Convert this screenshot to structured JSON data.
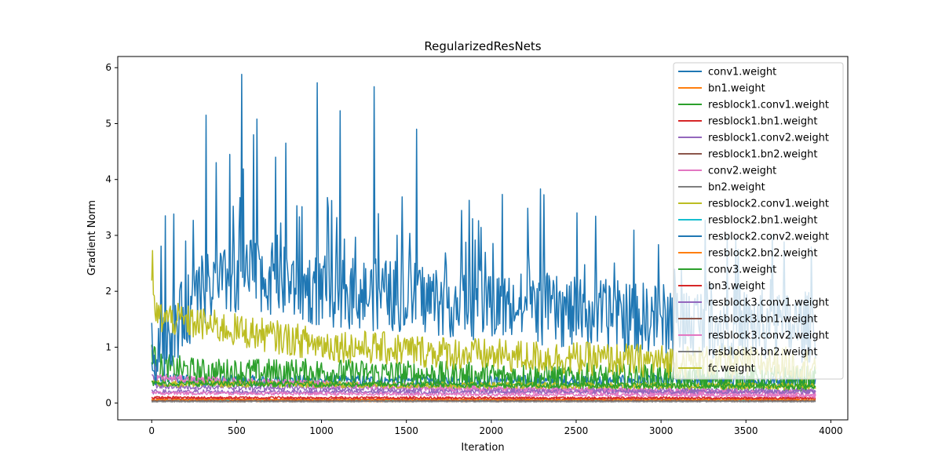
{
  "chart_data": {
    "type": "line",
    "title": "RegularizedResNets",
    "xlabel": "Iteration",
    "ylabel": "Gradient Norm",
    "xlim": [
      -200,
      4100
    ],
    "ylim": [
      -0.3,
      6.2
    ],
    "xticks": [
      0,
      500,
      1000,
      1500,
      2000,
      2500,
      3000,
      3500,
      4000
    ],
    "yticks": [
      0,
      1,
      2,
      3,
      4,
      5,
      6
    ],
    "x_range": [
      0,
      3910
    ],
    "grid": false,
    "legend_position": "upper right",
    "series": [
      {
        "name": "conv1.weight",
        "color": "#1f77b4",
        "profile": [
          [
            0,
            0.7
          ],
          [
            20,
            0.4
          ],
          [
            100,
            0.45
          ],
          [
            300,
            0.4
          ],
          [
            1000,
            0.4
          ],
          [
            2000,
            0.4
          ],
          [
            3910,
            0.4
          ]
        ],
        "amplitude": 0.1,
        "peaks": []
      },
      {
        "name": "bn1.weight",
        "color": "#ff7f0e",
        "profile": [
          [
            0,
            0.04
          ],
          [
            500,
            0.03
          ],
          [
            3910,
            0.04
          ]
        ],
        "amplitude": 0.01,
        "peaks": []
      },
      {
        "name": "resblock1.conv1.weight",
        "color": "#2ca02c",
        "profile": [
          [
            0,
            1.0
          ],
          [
            30,
            0.65
          ],
          [
            300,
            0.55
          ],
          [
            1000,
            0.55
          ],
          [
            2000,
            0.48
          ],
          [
            3000,
            0.45
          ],
          [
            3910,
            0.42
          ]
        ],
        "amplitude": 0.25,
        "peaks": []
      },
      {
        "name": "resblock1.bn1.weight",
        "color": "#d62728",
        "profile": [
          [
            0,
            0.08
          ],
          [
            500,
            0.07
          ],
          [
            3910,
            0.08
          ]
        ],
        "amplitude": 0.02,
        "peaks": []
      },
      {
        "name": "resblock1.conv2.weight",
        "color": "#9467bd",
        "profile": [
          [
            0,
            0.5
          ],
          [
            30,
            0.3
          ],
          [
            500,
            0.28
          ],
          [
            2000,
            0.24
          ],
          [
            3910,
            0.22
          ]
        ],
        "amplitude": 0.05,
        "peaks": []
      },
      {
        "name": "resblock1.bn2.weight",
        "color": "#8c564b",
        "profile": [
          [
            0,
            0.05
          ],
          [
            3910,
            0.05
          ]
        ],
        "amplitude": 0.01,
        "peaks": []
      },
      {
        "name": "conv2.weight",
        "color": "#e377c2",
        "profile": [
          [
            0,
            1.0
          ],
          [
            30,
            0.45
          ],
          [
            500,
            0.38
          ],
          [
            2000,
            0.25
          ],
          [
            3910,
            0.15
          ]
        ],
        "amplitude": 0.07,
        "peaks": []
      },
      {
        "name": "bn2.weight",
        "color": "#7f7f7f",
        "profile": [
          [
            0,
            0.03
          ],
          [
            3910,
            0.03
          ]
        ],
        "amplitude": 0.01,
        "peaks": []
      },
      {
        "name": "resblock2.conv1.weight",
        "color": "#bcbd22",
        "profile": [
          [
            0,
            0.4
          ],
          [
            30,
            0.35
          ],
          [
            1000,
            0.33
          ],
          [
            3910,
            0.3
          ]
        ],
        "amplitude": 0.06,
        "peaks": []
      },
      {
        "name": "resblock2.bn1.weight",
        "color": "#17becf",
        "profile": [
          [
            0,
            0.05
          ],
          [
            3910,
            0.05
          ]
        ],
        "amplitude": 0.01,
        "peaks": []
      },
      {
        "name": "resblock2.conv2.weight",
        "color": "#1f77b4",
        "profile": [
          [
            0,
            0.8
          ],
          [
            40,
            1.0
          ],
          [
            300,
            2.0
          ],
          [
            600,
            2.3
          ],
          [
            1000,
            2.0
          ],
          [
            1500,
            1.9
          ],
          [
            2000,
            1.75
          ],
          [
            2500,
            1.6
          ],
          [
            3000,
            1.5
          ],
          [
            3500,
            1.4
          ],
          [
            3910,
            1.35
          ]
        ],
        "amplitude": 0.65,
        "peaks": [
          [
            80,
            3.35
          ],
          [
            200,
            2.9
          ],
          [
            320,
            5.15
          ],
          [
            380,
            4.3
          ],
          [
            460,
            4.45
          ],
          [
            530,
            5.88
          ],
          [
            600,
            4.8
          ],
          [
            620,
            5.08
          ],
          [
            730,
            4.4
          ],
          [
            790,
            4.65
          ],
          [
            975,
            5.73
          ],
          [
            1110,
            5.23
          ],
          [
            1310,
            5.66
          ],
          [
            1560,
            4.9
          ],
          [
            2290,
            3.83
          ]
        ]
      },
      {
        "name": "resblock2.bn2.weight",
        "color": "#ff7f0e",
        "profile": [
          [
            0,
            0.06
          ],
          [
            3910,
            0.06
          ]
        ],
        "amplitude": 0.01,
        "peaks": []
      },
      {
        "name": "conv3.weight",
        "color": "#2ca02c",
        "profile": [
          [
            0,
            0.35
          ],
          [
            3910,
            0.3
          ]
        ],
        "amplitude": 0.05,
        "peaks": []
      },
      {
        "name": "bn3.weight",
        "color": "#d62728",
        "profile": [
          [
            0,
            0.1
          ],
          [
            3910,
            0.09
          ]
        ],
        "amplitude": 0.02,
        "peaks": []
      },
      {
        "name": "resblock3.conv1.weight",
        "color": "#9467bd",
        "profile": [
          [
            0,
            0.2
          ],
          [
            3910,
            0.2
          ]
        ],
        "amplitude": 0.04,
        "peaks": []
      },
      {
        "name": "resblock3.bn1.weight",
        "color": "#8c564b",
        "profile": [
          [
            0,
            0.04
          ],
          [
            3910,
            0.04
          ]
        ],
        "amplitude": 0.01,
        "peaks": []
      },
      {
        "name": "resblock3.conv2.weight",
        "color": "#e377c2",
        "profile": [
          [
            0,
            0.18
          ],
          [
            3910,
            0.13
          ]
        ],
        "amplitude": 0.03,
        "peaks": []
      },
      {
        "name": "resblock3.bn2.weight",
        "color": "#7f7f7f",
        "profile": [
          [
            0,
            0.03
          ],
          [
            3910,
            0.03
          ]
        ],
        "amplitude": 0.01,
        "peaks": []
      },
      {
        "name": "fc.weight",
        "color": "#bcbd22",
        "profile": [
          [
            0,
            2.0
          ],
          [
            30,
            1.55
          ],
          [
            500,
            1.3
          ],
          [
            1000,
            1.05
          ],
          [
            2000,
            0.85
          ],
          [
            3000,
            0.75
          ],
          [
            3910,
            0.7
          ]
        ],
        "amplitude": 0.3,
        "peaks": [
          [
            3,
            2.73
          ]
        ]
      }
    ]
  }
}
